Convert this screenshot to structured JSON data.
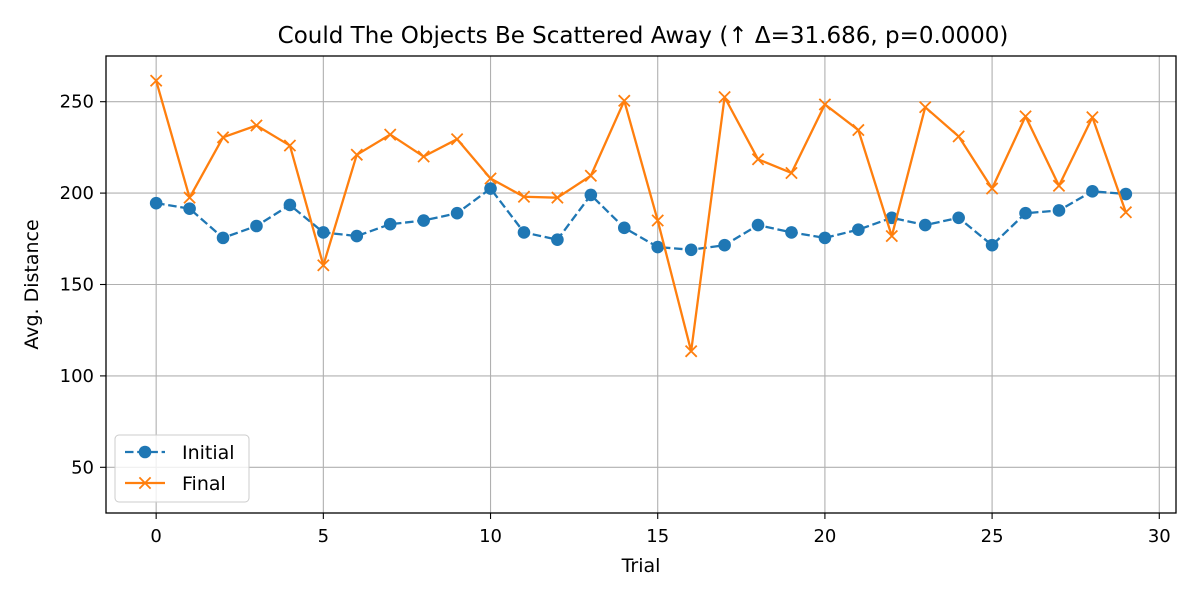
{
  "chart_data": {
    "type": "line",
    "title": "Could The Objects Be Scattered Away (↑ Δ=31.686, p=0.0000)",
    "xlabel": "Trial",
    "ylabel": "Avg. Distance",
    "xlim": [
      -1.5,
      30.5
    ],
    "ylim": [
      25,
      275
    ],
    "xticks": [
      0,
      5,
      10,
      15,
      20,
      25,
      30
    ],
    "yticks": [
      50,
      100,
      150,
      200,
      250
    ],
    "grid": true,
    "legend_position": "lower-left",
    "x": [
      0,
      1,
      2,
      3,
      4,
      5,
      6,
      7,
      8,
      9,
      10,
      11,
      12,
      13,
      14,
      15,
      16,
      17,
      18,
      19,
      20,
      21,
      22,
      23,
      24,
      25,
      26,
      27,
      28,
      29
    ],
    "series": [
      {
        "name": "Initial",
        "color": "#1f77b4",
        "line_style": "dashed",
        "marker": "circle",
        "values": [
          194.5,
          191.5,
          175.5,
          182,
          193.5,
          178.5,
          176.5,
          183,
          185,
          189,
          202.5,
          178.5,
          174.5,
          199,
          181,
          170.5,
          169,
          171.5,
          182.5,
          178.5,
          175.5,
          180,
          186.5,
          182.5,
          186.5,
          171.5,
          189,
          190.5,
          201,
          199.5
        ]
      },
      {
        "name": "Final",
        "color": "#ff7f0e",
        "line_style": "solid",
        "marker": "x",
        "values": [
          261.5,
          197.5,
          230.5,
          237,
          226,
          160.5,
          221,
          232,
          220,
          229.5,
          208,
          198,
          197.5,
          209.5,
          250.5,
          185,
          113.5,
          252.5,
          218.5,
          211,
          248.5,
          234.5,
          176.5,
          247,
          231,
          202.5,
          242,
          204,
          241.5,
          189.5
        ]
      }
    ]
  }
}
